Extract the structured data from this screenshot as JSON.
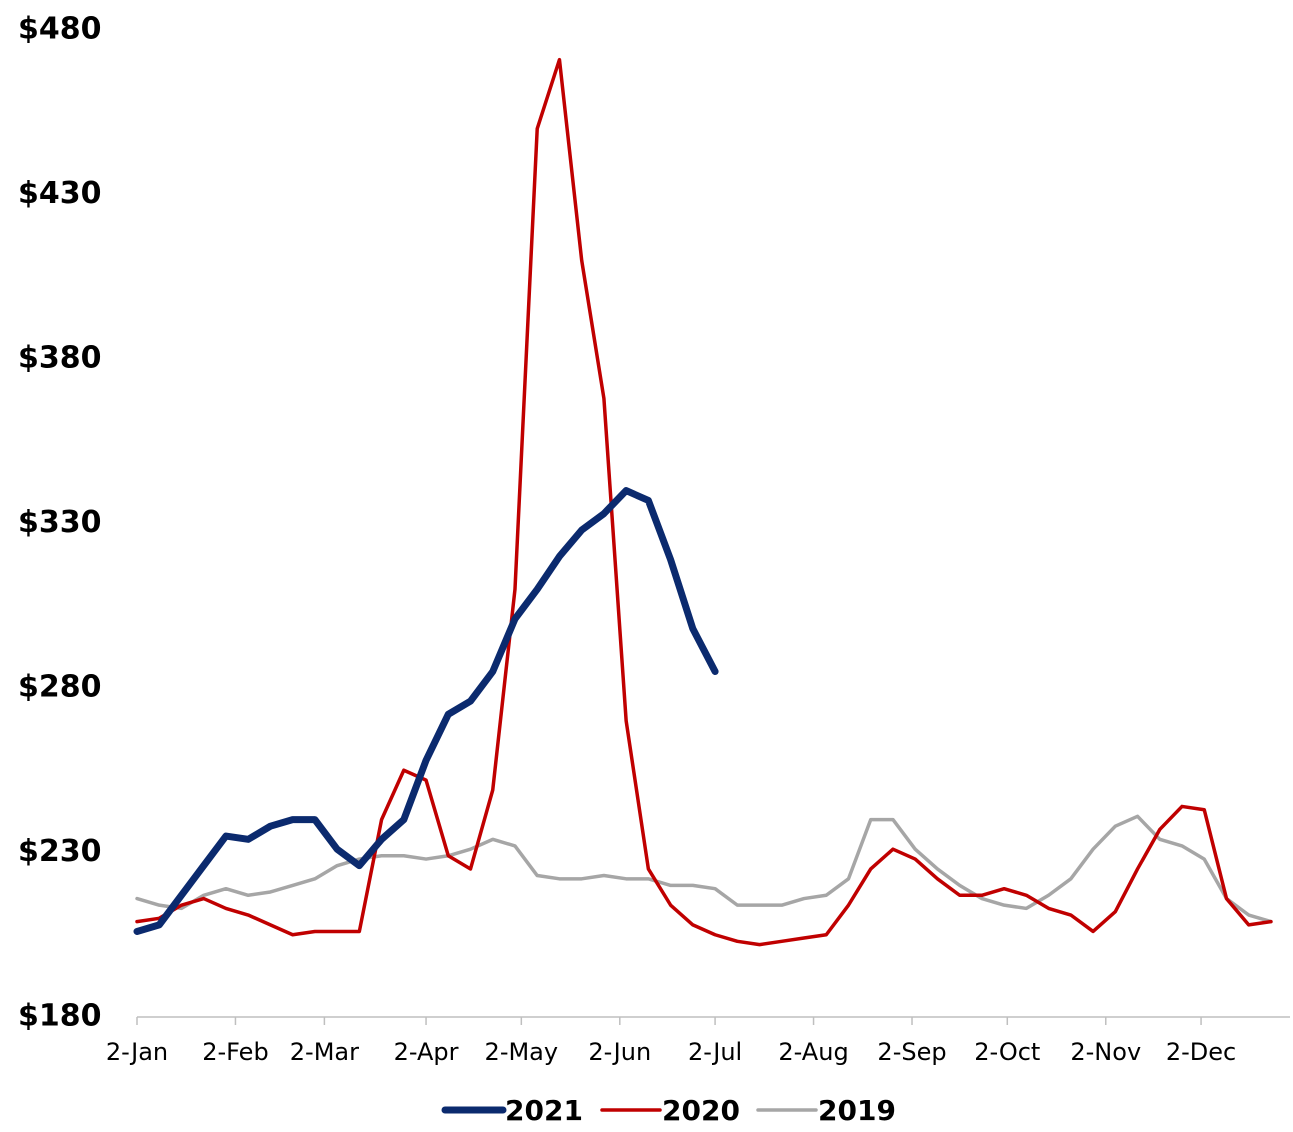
{
  "chart_data": {
    "type": "line",
    "x": [
      0,
      7,
      14,
      21,
      28,
      35,
      42,
      49,
      56,
      63,
      70,
      77,
      84,
      91,
      98,
      105,
      112,
      119,
      126,
      133,
      140,
      147,
      154,
      161,
      168,
      175,
      182,
      189,
      196,
      203,
      210,
      217,
      224,
      231,
      238,
      245,
      252,
      259,
      266,
      273,
      280,
      287,
      294,
      301,
      308,
      315,
      322,
      329,
      336,
      343,
      350,
      357
    ],
    "series": [
      {
        "name": "2021",
        "color": "#0b2a6e",
        "width": 7,
        "values": [
          206,
          208,
          217,
          226,
          235,
          234,
          238,
          240,
          240,
          231,
          226,
          234,
          240,
          258,
          272,
          276,
          285,
          301,
          310,
          320,
          328,
          333,
          340,
          337,
          319,
          298,
          285,
          null,
          null,
          null,
          null,
          null,
          null,
          null,
          null,
          null,
          null,
          null,
          null,
          null,
          null,
          null,
          null,
          null,
          null,
          null,
          null,
          null,
          null,
          null,
          null,
          null
        ]
      },
      {
        "name": "2020",
        "color": "#c00000",
        "width": 3.5,
        "values": [
          209,
          210,
          214,
          216,
          213,
          211,
          208,
          205,
          206,
          206,
          206,
          240,
          255,
          252,
          229,
          225,
          249,
          310,
          450,
          471,
          410,
          368,
          270,
          225,
          214,
          208,
          205,
          203,
          202,
          203,
          204,
          205,
          214,
          225,
          231,
          228,
          222,
          217,
          217,
          219,
          217,
          213,
          211,
          206,
          212,
          225,
          237,
          244,
          243,
          216,
          208,
          209
        ]
      },
      {
        "name": "2019",
        "color": "#a6a6a6",
        "width": 3.5,
        "values": [
          216,
          214,
          213,
          217,
          219,
          217,
          218,
          220,
          222,
          226,
          228,
          229,
          229,
          228,
          229,
          231,
          234,
          232,
          223,
          222,
          222,
          223,
          222,
          222,
          220,
          220,
          219,
          214,
          214,
          214,
          216,
          217,
          222,
          240,
          240,
          231,
          225,
          220,
          216,
          214,
          213,
          217,
          222,
          231,
          238,
          241,
          234,
          232,
          228,
          216,
          211,
          209
        ]
      }
    ],
    "xlim": [
      0,
      363
    ],
    "xticks": [
      {
        "value": 0,
        "label": "2-Jan"
      },
      {
        "value": 31,
        "label": "2-Feb"
      },
      {
        "value": 59,
        "label": "2-Mar"
      },
      {
        "value": 91,
        "label": "2-Apr"
      },
      {
        "value": 121,
        "label": "2-May"
      },
      {
        "value": 152,
        "label": "2-Jun"
      },
      {
        "value": 182,
        "label": "2-Jul"
      },
      {
        "value": 213,
        "label": "2-Aug"
      },
      {
        "value": 244,
        "label": "2-Sep"
      },
      {
        "value": 274,
        "label": "2-Oct"
      },
      {
        "value": 305,
        "label": "2-Nov"
      },
      {
        "value": 335,
        "label": "2-Dec"
      }
    ],
    "ylim": [
      180,
      480
    ],
    "yticks": [
      {
        "value": 180,
        "label": "$180"
      },
      {
        "value": 230,
        "label": "$230"
      },
      {
        "value": 280,
        "label": "$280"
      },
      {
        "value": 330,
        "label": "$330"
      },
      {
        "value": 380,
        "label": "$380"
      },
      {
        "value": 430,
        "label": "$430"
      },
      {
        "value": 480,
        "label": "$480"
      }
    ],
    "grid": false,
    "legend": "bottom"
  }
}
